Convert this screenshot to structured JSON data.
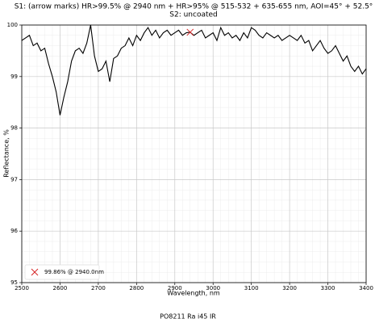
{
  "chart_data": {
    "type": "line",
    "title": "S1: (arrow marks) HR>99.5% @ 2940 nm + HR>95% @ 515-532 + 635-655 nm, AOI=45° + 52.5°",
    "subtitle": "S2: uncoated",
    "x_label": "Wavelength, nm",
    "y_label": "Reflectance, %",
    "footer": "PO8211 Ra i45 IR",
    "xlim": [
      2500,
      3400
    ],
    "ylim": [
      95,
      100
    ],
    "xticks": [
      2500,
      2600,
      2700,
      2800,
      2900,
      3000,
      3100,
      3200,
      3300,
      3400
    ],
    "yticks": [
      95,
      96,
      97,
      98,
      99,
      100
    ],
    "grid": true,
    "minor_grid": true,
    "legend": "lower left",
    "series": [
      {
        "color": "#000000",
        "marker": "none",
        "x": [
          2500,
          2510,
          2520,
          2530,
          2540,
          2550,
          2560,
          2570,
          2580,
          2590,
          2600,
          2610,
          2620,
          2630,
          2640,
          2650,
          2660,
          2670,
          2680,
          2690,
          2700,
          2710,
          2720,
          2730,
          2740,
          2750,
          2760,
          2770,
          2780,
          2790,
          2800,
          2810,
          2820,
          2830,
          2840,
          2850,
          2860,
          2870,
          2880,
          2890,
          2900,
          2910,
          2920,
          2930,
          2940,
          2950,
          2960,
          2970,
          2980,
          2990,
          3000,
          3010,
          3020,
          3030,
          3040,
          3050,
          3060,
          3070,
          3080,
          3090,
          3100,
          3110,
          3120,
          3130,
          3140,
          3150,
          3160,
          3170,
          3180,
          3190,
          3200,
          3210,
          3220,
          3230,
          3240,
          3250,
          3260,
          3270,
          3280,
          3290,
          3300,
          3310,
          3320,
          3330,
          3340,
          3350,
          3360,
          3370,
          3380,
          3390,
          3400
        ],
        "values": [
          99.7,
          99.75,
          99.8,
          99.6,
          99.65,
          99.5,
          99.55,
          99.25,
          99.0,
          98.7,
          98.25,
          98.6,
          98.9,
          99.3,
          99.5,
          99.55,
          99.45,
          99.65,
          100.0,
          99.4,
          99.1,
          99.15,
          99.3,
          98.9,
          99.35,
          99.4,
          99.55,
          99.6,
          99.75,
          99.6,
          99.8,
          99.7,
          99.85,
          99.95,
          99.8,
          99.9,
          99.75,
          99.85,
          99.9,
          99.8,
          99.85,
          99.9,
          99.8,
          99.85,
          99.86,
          99.8,
          99.85,
          99.9,
          99.75,
          99.8,
          99.85,
          99.7,
          99.95,
          99.8,
          99.85,
          99.75,
          99.8,
          99.7,
          99.85,
          99.75,
          99.95,
          99.9,
          99.8,
          99.75,
          99.85,
          99.8,
          99.75,
          99.8,
          99.7,
          99.75,
          99.8,
          99.75,
          99.7,
          99.8,
          99.65,
          99.7,
          99.5,
          99.6,
          99.7,
          99.55,
          99.45,
          99.5,
          99.6,
          99.45,
          99.3,
          99.4,
          99.2,
          99.1,
          99.2,
          99.05,
          99.15
        ]
      },
      {
        "name": "99.86% @ 2940.0nm",
        "color": "#d62728",
        "marker": "x",
        "x": [
          2940
        ],
        "values": [
          99.86
        ]
      }
    ]
  }
}
